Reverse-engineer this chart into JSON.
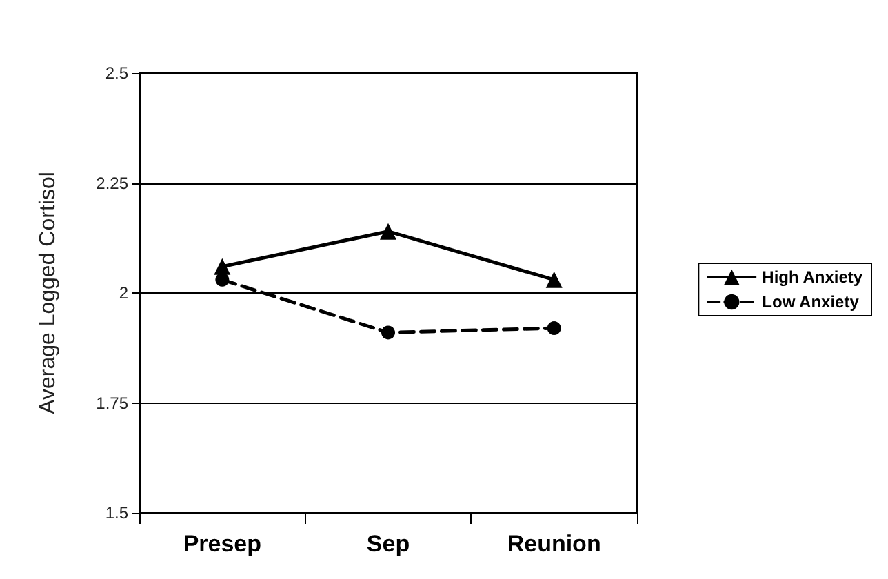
{
  "chart_data": {
    "type": "line",
    "ylabel": "Average Logged Cortisol",
    "categories": [
      "Presep",
      "Sep",
      "Reunion"
    ],
    "series": [
      {
        "name": "High Anxiety",
        "color": "#000000",
        "marker": "triangle",
        "line_style": "solid",
        "values": [
          2.06,
          2.14,
          2.03
        ]
      },
      {
        "name": "Low Anxiety",
        "color": "#000000",
        "marker": "circle",
        "line_style": "dashed",
        "values": [
          2.03,
          1.91,
          1.92
        ]
      }
    ],
    "ylim": [
      1.5,
      2.5
    ],
    "yticks": [
      1.5,
      1.75,
      2,
      2.25,
      2.5
    ],
    "grid": "y",
    "legend": "right"
  }
}
